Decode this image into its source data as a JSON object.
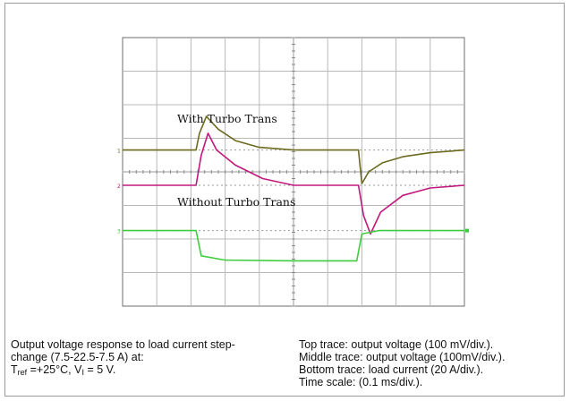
{
  "chart_data": {
    "type": "line",
    "title": "",
    "xlabel": "",
    "ylabel": "",
    "x_divisions": 10,
    "y_divisions": 8,
    "grid": true,
    "annotations": {
      "top": "With Turbo Trans",
      "middle": "Without Turbo Trans"
    },
    "series": [
      {
        "marker": "1",
        "color": "#6b6a1f",
        "values": [
          [
            0,
            0
          ],
          [
            2.15,
            0
          ],
          [
            2.25,
            0.5
          ],
          [
            2.45,
            1.0
          ],
          [
            2.8,
            0.62
          ],
          [
            3.3,
            0.28
          ],
          [
            4.0,
            0.08
          ],
          [
            5.0,
            0
          ],
          [
            6.0,
            0
          ],
          [
            6.9,
            0
          ],
          [
            7.0,
            -1.0
          ],
          [
            7.2,
            -0.65
          ],
          [
            7.6,
            -0.38
          ],
          [
            8.2,
            -0.2
          ],
          [
            9.0,
            -0.08
          ],
          [
            10,
            0
          ]
        ]
      },
      {
        "marker": "2",
        "color": "#c2187d",
        "values": [
          [
            0,
            0
          ],
          [
            2.15,
            0
          ],
          [
            2.3,
            0.9
          ],
          [
            2.5,
            1.55
          ],
          [
            2.75,
            1.05
          ],
          [
            3.3,
            0.6
          ],
          [
            4.1,
            0.2
          ],
          [
            5.0,
            0
          ],
          [
            6.0,
            0
          ],
          [
            6.9,
            0
          ],
          [
            7.05,
            -0.9
          ],
          [
            7.25,
            -1.45
          ],
          [
            7.55,
            -0.8
          ],
          [
            8.2,
            -0.3
          ],
          [
            9.0,
            -0.08
          ],
          [
            10,
            0
          ]
        ]
      },
      {
        "marker": "3",
        "color": "#3fcd3f",
        "values": [
          [
            0,
            0
          ],
          [
            2.15,
            0
          ],
          [
            2.3,
            -0.75
          ],
          [
            3.0,
            -0.88
          ],
          [
            5.0,
            -0.9
          ],
          [
            6.85,
            -0.9
          ],
          [
            7.0,
            -0.1
          ],
          [
            7.5,
            0
          ],
          [
            10,
            0
          ]
        ]
      }
    ],
    "channel_offsets_div": [
      4.65,
      3.6,
      2.25
    ]
  },
  "caption": {
    "left_line1": " Output voltage response to load current step-",
    "left_line2": "change (7.5-22.5-7.5 A) at:",
    "left_line3_a": "T",
    "left_line3_sub": "ref",
    "left_line3_b": " =+25°C, V",
    "left_line3_sub2": "I",
    "left_line3_c": " = 5 V.",
    "right_line1": "Top trace: output voltage (100 mV/div.).",
    "right_line2": "Middle trace: output voltage (100mV/div.).",
    "right_line3": "Bottom trace: load current (20 A/div.).",
    "right_line4": "Time scale: (0.1 ms/div.)."
  }
}
